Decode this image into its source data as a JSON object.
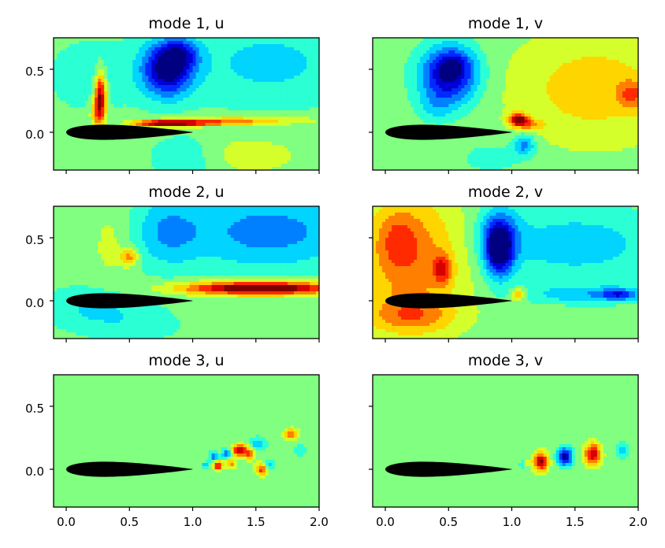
{
  "chart_data": [
    {
      "type": "heatmap",
      "title": "mode 1, u",
      "xlim": [
        -0.1,
        2.0
      ],
      "ylim": [
        -0.3,
        0.75
      ],
      "yticks": [
        "0.5",
        "0.0"
      ],
      "colormap": "jet",
      "features": [
        {
          "x": 0.8,
          "y": 0.5,
          "sx": 0.14,
          "sy": 0.15,
          "v": -1.0
        },
        {
          "x": 0.9,
          "y": 0.62,
          "sx": 0.1,
          "sy": 0.08,
          "v": -0.45
        },
        {
          "x": 0.27,
          "y": 0.3,
          "sx": 0.03,
          "sy": 0.12,
          "v": 1.0
        },
        {
          "x": 0.25,
          "y": 0.15,
          "sx": 0.04,
          "sy": 0.08,
          "v": 0.5
        },
        {
          "x": 0.8,
          "y": 0.07,
          "sx": 0.18,
          "sy": 0.018,
          "v": 1.05
        },
        {
          "x": 1.15,
          "y": 0.08,
          "sx": 0.3,
          "sy": 0.02,
          "v": 0.45
        },
        {
          "x": 1.5,
          "y": 0.1,
          "sx": 0.4,
          "sy": 0.03,
          "v": 0.25
        },
        {
          "x": 1.6,
          "y": 0.55,
          "sx": 0.5,
          "sy": 0.25,
          "v": -0.3
        },
        {
          "x": 0.2,
          "y": 0.45,
          "sx": 0.3,
          "sy": 0.25,
          "v": -0.15
        },
        {
          "x": 0.95,
          "y": -0.2,
          "sx": 0.2,
          "sy": 0.12,
          "v": -0.25
        },
        {
          "x": 1.4,
          "y": -0.18,
          "sx": 0.3,
          "sy": 0.1,
          "v": 0.2
        }
      ]
    },
    {
      "type": "heatmap",
      "title": "mode 1, v",
      "xlim": [
        -0.1,
        2.0
      ],
      "ylim": [
        -0.3,
        0.75
      ],
      "yticks": [
        "0.5",
        "0.0"
      ],
      "colormap": "jet",
      "features": [
        {
          "x": 0.5,
          "y": 0.45,
          "sx": 0.16,
          "sy": 0.16,
          "v": -0.95
        },
        {
          "x": 0.55,
          "y": 0.55,
          "sx": 0.1,
          "sy": 0.08,
          "v": -0.25
        },
        {
          "x": 0.4,
          "y": 0.2,
          "sx": 0.1,
          "sy": 0.08,
          "v": -0.2
        },
        {
          "x": 1.05,
          "y": 0.1,
          "sx": 0.05,
          "sy": 0.035,
          "v": 1.05
        },
        {
          "x": 1.15,
          "y": 0.06,
          "sx": 0.07,
          "sy": 0.03,
          "v": 0.4
        },
        {
          "x": 1.65,
          "y": 0.35,
          "sx": 0.45,
          "sy": 0.3,
          "v": 0.35
        },
        {
          "x": 1.95,
          "y": 0.3,
          "sx": 0.08,
          "sy": 0.08,
          "v": 0.4
        },
        {
          "x": 1.1,
          "y": -0.1,
          "sx": 0.06,
          "sy": 0.06,
          "v": -0.5
        },
        {
          "x": 0.85,
          "y": -0.2,
          "sx": 0.2,
          "sy": 0.1,
          "v": -0.15
        }
      ]
    },
    {
      "type": "heatmap",
      "title": "mode 2, u",
      "xlim": [
        -0.1,
        2.0
      ],
      "ylim": [
        -0.3,
        0.75
      ],
      "yticks": [
        "0.5",
        "0.0"
      ],
      "colormap": "jet",
      "features": [
        {
          "x": 1.55,
          "y": 0.1,
          "sx": 0.45,
          "sy": 0.04,
          "v": 1.0
        },
        {
          "x": 1.5,
          "y": 0.1,
          "sx": 0.3,
          "sy": 0.025,
          "v": 0.35
        },
        {
          "x": 1.6,
          "y": 0.55,
          "sx": 0.5,
          "sy": 0.22,
          "v": -0.5
        },
        {
          "x": 0.8,
          "y": 0.55,
          "sx": 0.18,
          "sy": 0.2,
          "v": -0.35
        },
        {
          "x": 0.35,
          "y": 0.45,
          "sx": 0.1,
          "sy": 0.2,
          "v": 0.15
        },
        {
          "x": 0.5,
          "y": 0.35,
          "sx": 0.05,
          "sy": 0.05,
          "v": 0.5
        },
        {
          "x": 0.2,
          "y": -0.05,
          "sx": 0.3,
          "sy": 0.12,
          "v": -0.25
        },
        {
          "x": 0.55,
          "y": -0.2,
          "sx": 0.3,
          "sy": 0.1,
          "v": -0.15
        }
      ]
    },
    {
      "type": "heatmap",
      "title": "mode 2, v",
      "xlim": [
        -0.1,
        2.0
      ],
      "ylim": [
        -0.3,
        0.75
      ],
      "yticks": [
        "0.5",
        "0.0"
      ],
      "colormap": "jet",
      "features": [
        {
          "x": 0.2,
          "y": 0.35,
          "sx": 0.3,
          "sy": 0.35,
          "v": 0.55
        },
        {
          "x": 0.1,
          "y": 0.5,
          "sx": 0.1,
          "sy": 0.15,
          "v": 0.25
        },
        {
          "x": 0.45,
          "y": 0.25,
          "sx": 0.05,
          "sy": 0.08,
          "v": 0.55
        },
        {
          "x": 0.2,
          "y": -0.12,
          "sx": 0.25,
          "sy": 0.1,
          "v": 0.4
        },
        {
          "x": 0.9,
          "y": 0.4,
          "sx": 0.08,
          "sy": 0.15,
          "v": -1.0
        },
        {
          "x": 0.9,
          "y": 0.55,
          "sx": 0.12,
          "sy": 0.15,
          "v": -0.35
        },
        {
          "x": 1.5,
          "y": 0.45,
          "sx": 0.5,
          "sy": 0.2,
          "v": -0.35
        },
        {
          "x": 1.6,
          "y": 0.05,
          "sx": 0.35,
          "sy": 0.05,
          "v": -0.35
        },
        {
          "x": 1.85,
          "y": 0.05,
          "sx": 0.1,
          "sy": 0.03,
          "v": -0.5
        },
        {
          "x": 1.05,
          "y": 0.05,
          "sx": 0.04,
          "sy": 0.03,
          "v": 0.6
        }
      ]
    },
    {
      "type": "heatmap",
      "title": "mode 3, u",
      "xlim": [
        -0.1,
        2.0
      ],
      "ylim": [
        -0.3,
        0.75
      ],
      "yticks": [
        "0.5",
        "0.0"
      ],
      "colormap": "jet",
      "features": [
        {
          "x": 1.37,
          "y": 0.15,
          "sx": 0.04,
          "sy": 0.03,
          "v": 1.0
        },
        {
          "x": 1.2,
          "y": 0.03,
          "sx": 0.025,
          "sy": 0.025,
          "v": 0.85
        },
        {
          "x": 1.55,
          "y": 0.0,
          "sx": 0.035,
          "sy": 0.035,
          "v": 0.7
        },
        {
          "x": 1.45,
          "y": 0.12,
          "sx": 0.03,
          "sy": 0.03,
          "v": 0.55
        },
        {
          "x": 1.3,
          "y": 0.05,
          "sx": 0.03,
          "sy": 0.03,
          "v": 0.5
        },
        {
          "x": 1.78,
          "y": 0.28,
          "sx": 0.04,
          "sy": 0.03,
          "v": 0.55
        },
        {
          "x": 1.17,
          "y": 0.1,
          "sx": 0.025,
          "sy": 0.025,
          "v": -0.6
        },
        {
          "x": 1.27,
          "y": 0.12,
          "sx": 0.025,
          "sy": 0.03,
          "v": -0.6
        },
        {
          "x": 1.52,
          "y": 0.2,
          "sx": 0.04,
          "sy": 0.035,
          "v": -0.45
        },
        {
          "x": 1.6,
          "y": 0.03,
          "sx": 0.03,
          "sy": 0.03,
          "v": -0.4
        },
        {
          "x": 1.1,
          "y": 0.03,
          "sx": 0.02,
          "sy": 0.02,
          "v": -0.35
        },
        {
          "x": 1.85,
          "y": 0.15,
          "sx": 0.04,
          "sy": 0.04,
          "v": -0.2
        }
      ]
    },
    {
      "type": "heatmap",
      "title": "mode 3, v",
      "xlim": [
        -0.1,
        2.0
      ],
      "ylim": [
        -0.3,
        0.75
      ],
      "yticks": [
        "0.5",
        "0.0"
      ],
      "colormap": "jet",
      "features": [
        {
          "x": 1.23,
          "y": 0.06,
          "sx": 0.04,
          "sy": 0.05,
          "v": 1.0
        },
        {
          "x": 1.42,
          "y": 0.1,
          "sx": 0.04,
          "sy": 0.05,
          "v": -1.0
        },
        {
          "x": 1.64,
          "y": 0.12,
          "sx": 0.045,
          "sy": 0.06,
          "v": 0.9
        },
        {
          "x": 1.87,
          "y": 0.15,
          "sx": 0.03,
          "sy": 0.04,
          "v": -0.4
        },
        {
          "x": 1.08,
          "y": 0.04,
          "sx": 0.015,
          "sy": 0.02,
          "v": -0.3
        },
        {
          "x": 1.12,
          "y": 0.05,
          "sx": 0.02,
          "sy": 0.02,
          "v": 0.2
        }
      ]
    }
  ],
  "x_ticklabels": [
    "0.0",
    "0.5",
    "1.0",
    "1.5",
    "2.0"
  ],
  "colors": {
    "background": "#7fff7f",
    "airfoil": "#000000",
    "frame": "#000000"
  }
}
